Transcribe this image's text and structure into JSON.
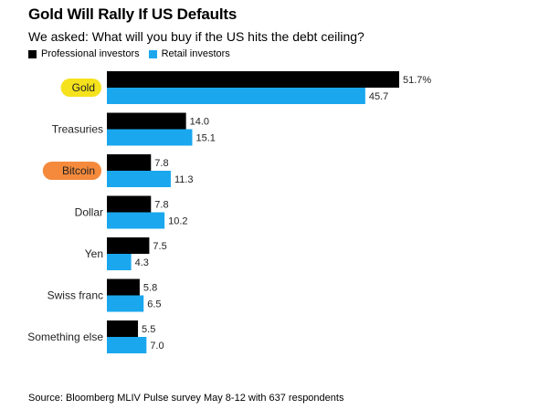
{
  "header": {
    "title": "Gold Will Rally If US Defaults",
    "subtitle": "We asked: What will you buy if the US hits the debt ceiling?"
  },
  "legend": {
    "items": [
      {
        "label": "Professional investors",
        "color": "#000000"
      },
      {
        "label": "Retail investors",
        "color": "#1aa7ee"
      }
    ]
  },
  "chart_data": {
    "type": "bar",
    "orientation": "horizontal",
    "categories": [
      "Gold",
      "Treasuries",
      "Bitcoin",
      "Dollar",
      "Yen",
      "Swiss franc",
      "Something else"
    ],
    "series": [
      {
        "name": "Professional investors",
        "color": "#000000",
        "values": [
          51.7,
          14.0,
          7.8,
          7.8,
          7.5,
          5.8,
          5.5
        ],
        "labels": [
          "51.7%",
          "14.0",
          "7.8",
          "7.8",
          "7.5",
          "5.8",
          "5.5"
        ]
      },
      {
        "name": "Retail investors",
        "color": "#1aa7ee",
        "values": [
          45.7,
          15.1,
          11.3,
          10.2,
          4.3,
          6.5,
          7.0
        ],
        "labels": [
          "45.7",
          "15.1",
          "11.3",
          "10.2",
          "4.3",
          "6.5",
          "7.0"
        ]
      }
    ],
    "highlights": [
      {
        "category": "Gold",
        "color": "#f5e21c"
      },
      {
        "category": "Bitcoin",
        "color": "#f58a3c"
      }
    ],
    "xlim": [
      0,
      51.7
    ],
    "grid": false,
    "legend_position": "top-left"
  },
  "footer": {
    "source": "Source: Bloomberg MLIV Pulse survey May 8-12 with 637 respondents"
  }
}
